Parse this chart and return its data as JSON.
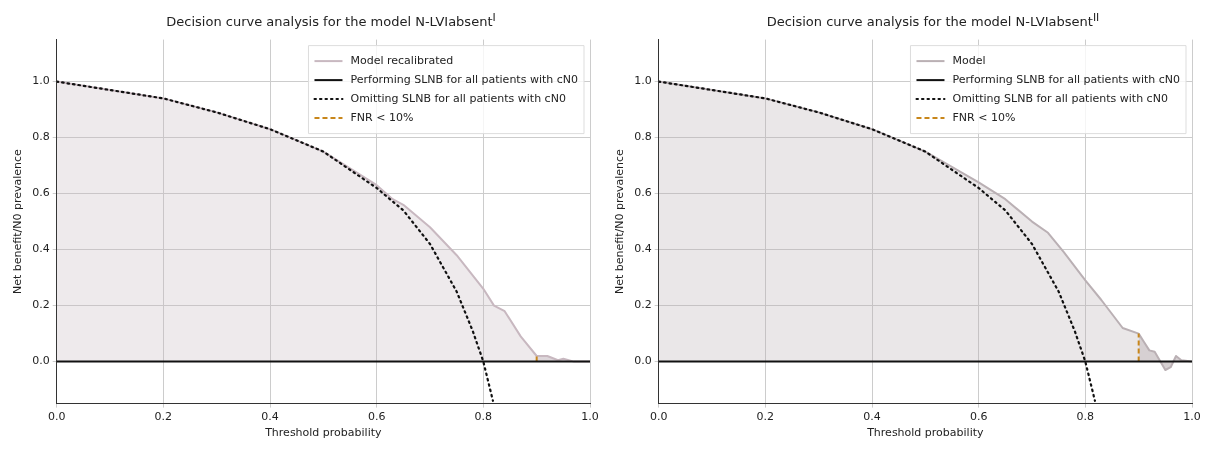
{
  "chart_data": [
    {
      "type": "line",
      "title": "Decision curve analysis for the model N-LVIabsent$^{I}$",
      "xlabel": "Threshold probability",
      "ylabel": "Net benefit/N0 prevalence",
      "xlim": [
        0,
        1
      ],
      "ylim": [
        -0.15,
        1.15
      ],
      "xticks": [
        {
          "value": 0,
          "label": "0.0"
        },
        {
          "value": 0.2,
          "label": "0.2"
        },
        {
          "value": 0.4,
          "label": "0.4"
        },
        {
          "value": 0.6,
          "label": "0.6"
        },
        {
          "value": 0.8,
          "label": "0.8"
        },
        {
          "value": 1,
          "label": "1.0"
        }
      ],
      "yticks": [
        {
          "value": 0,
          "label": "0.0"
        },
        {
          "value": 0.2,
          "label": "0.2"
        },
        {
          "value": 0.4,
          "label": "0.4"
        },
        {
          "value": 0.6,
          "label": "0.6"
        },
        {
          "value": 0.8,
          "label": "0.8"
        },
        {
          "value": 1,
          "label": "1.0"
        }
      ],
      "grid": true,
      "legend": "top right",
      "series": [
        {
          "name": "Model recalibrated",
          "type": "area",
          "color": "#c8b8c0",
          "x": [
            0,
            0.1,
            0.2,
            0.3,
            0.4,
            0.5,
            0.6,
            0.63,
            0.65,
            0.7,
            0.75,
            0.8,
            0.82,
            0.84,
            0.87,
            0.9,
            0.92,
            0.94,
            0.95,
            0.97,
            1.0
          ],
          "values": [
            1,
            0.97,
            0.94,
            0.89,
            0.83,
            0.75,
            0.63,
            0.58,
            0.56,
            0.48,
            0.38,
            0.26,
            0.2,
            0.18,
            0.09,
            0.02,
            0.02,
            0.005,
            0.01,
            0.0,
            0.0
          ]
        },
        {
          "type": "area",
          "color": "#b0a0a8",
          "x": [
            0.9,
            0.92,
            0.94,
            0.95,
            0.97,
            1.0
          ],
          "values": [
            0.02,
            0.02,
            0.005,
            0.01,
            0.0,
            0.0
          ]
        },
        {
          "name": "Performing SLNB for all patients with cN0",
          "type": "line",
          "color": "#111111",
          "line_style": "solid",
          "x": [
            0,
            1
          ],
          "values": [
            0,
            0
          ]
        },
        {
          "name": "Omitting SLNB for all patients with cN0",
          "type": "line",
          "color": "#111111",
          "line_style": "dotted",
          "x": [
            0,
            0.1,
            0.2,
            0.3,
            0.4,
            0.5,
            0.6,
            0.65,
            0.7,
            0.75,
            0.78,
            0.8,
            0.818
          ],
          "values": [
            1,
            0.97,
            0.94,
            0.89,
            0.83,
            0.75,
            0.62,
            0.54,
            0.42,
            0.25,
            0.11,
            0,
            -0.14
          ]
        },
        {
          "name": "FNR < 10%",
          "type": "line",
          "color": "#c8861a",
          "line_style": "dashed",
          "x": [
            0.9,
            0.9
          ],
          "values": [
            0,
            0.02
          ]
        }
      ]
    },
    {
      "type": "line",
      "title": "Decision curve analysis for the model N-LVIabsent$^{II}$",
      "xlabel": "Threshold probability",
      "ylabel": "Net benefit/N0 prevalence",
      "xlim": [
        0,
        1
      ],
      "ylim": [
        -0.15,
        1.15
      ],
      "xticks": [
        {
          "value": 0,
          "label": "0.0"
        },
        {
          "value": 0.2,
          "label": "0.2"
        },
        {
          "value": 0.4,
          "label": "0.4"
        },
        {
          "value": 0.6,
          "label": "0.6"
        },
        {
          "value": 0.8,
          "label": "0.8"
        },
        {
          "value": 1,
          "label": "1.0"
        }
      ],
      "yticks": [
        {
          "value": 0,
          "label": "0.0"
        },
        {
          "value": 0.2,
          "label": "0.2"
        },
        {
          "value": 0.4,
          "label": "0.4"
        },
        {
          "value": 0.6,
          "label": "0.6"
        },
        {
          "value": 0.8,
          "label": "0.8"
        },
        {
          "value": 1,
          "label": "1.0"
        }
      ],
      "grid": true,
      "legend": "top right",
      "series": [
        {
          "name": "Model",
          "type": "area",
          "color": "#bab0b4",
          "x": [
            0,
            0.1,
            0.2,
            0.3,
            0.4,
            0.5,
            0.6,
            0.65,
            0.7,
            0.73,
            0.76,
            0.8,
            0.83,
            0.87,
            0.9,
            0.91,
            0.92,
            0.93,
            0.95,
            0.96,
            0.97,
            0.98,
            1.0
          ],
          "values": [
            1,
            0.97,
            0.94,
            0.89,
            0.83,
            0.75,
            0.64,
            0.58,
            0.5,
            0.46,
            0.39,
            0.29,
            0.22,
            0.12,
            0.1,
            0.07,
            0.04,
            0.035,
            -0.03,
            -0.02,
            0.02,
            0.005,
            0.0
          ]
        },
        {
          "type": "area",
          "color": "#a09498",
          "x": [
            0.9,
            0.91,
            0.92,
            0.93,
            0.95,
            0.96,
            0.97,
            0.98,
            1.0
          ],
          "values": [
            0.1,
            0.07,
            0.04,
            0.035,
            -0.03,
            -0.02,
            0.02,
            0.005,
            0.0
          ]
        },
        {
          "name": "Performing SLNB for all patients with cN0",
          "type": "line",
          "color": "#111111",
          "line_style": "solid",
          "x": [
            0,
            1
          ],
          "values": [
            0,
            0
          ]
        },
        {
          "name": "Omitting SLNB for all patients with cN0",
          "type": "line",
          "color": "#111111",
          "line_style": "dotted",
          "x": [
            0,
            0.1,
            0.2,
            0.3,
            0.4,
            0.5,
            0.6,
            0.65,
            0.7,
            0.75,
            0.78,
            0.8,
            0.818
          ],
          "values": [
            1,
            0.97,
            0.94,
            0.89,
            0.83,
            0.75,
            0.62,
            0.54,
            0.42,
            0.25,
            0.11,
            0,
            -0.14
          ]
        },
        {
          "name": "FNR < 10%",
          "type": "line",
          "color": "#c8861a",
          "line_style": "dashed",
          "x": [
            0.9,
            0.9
          ],
          "values": [
            0,
            0.1
          ]
        }
      ]
    }
  ]
}
